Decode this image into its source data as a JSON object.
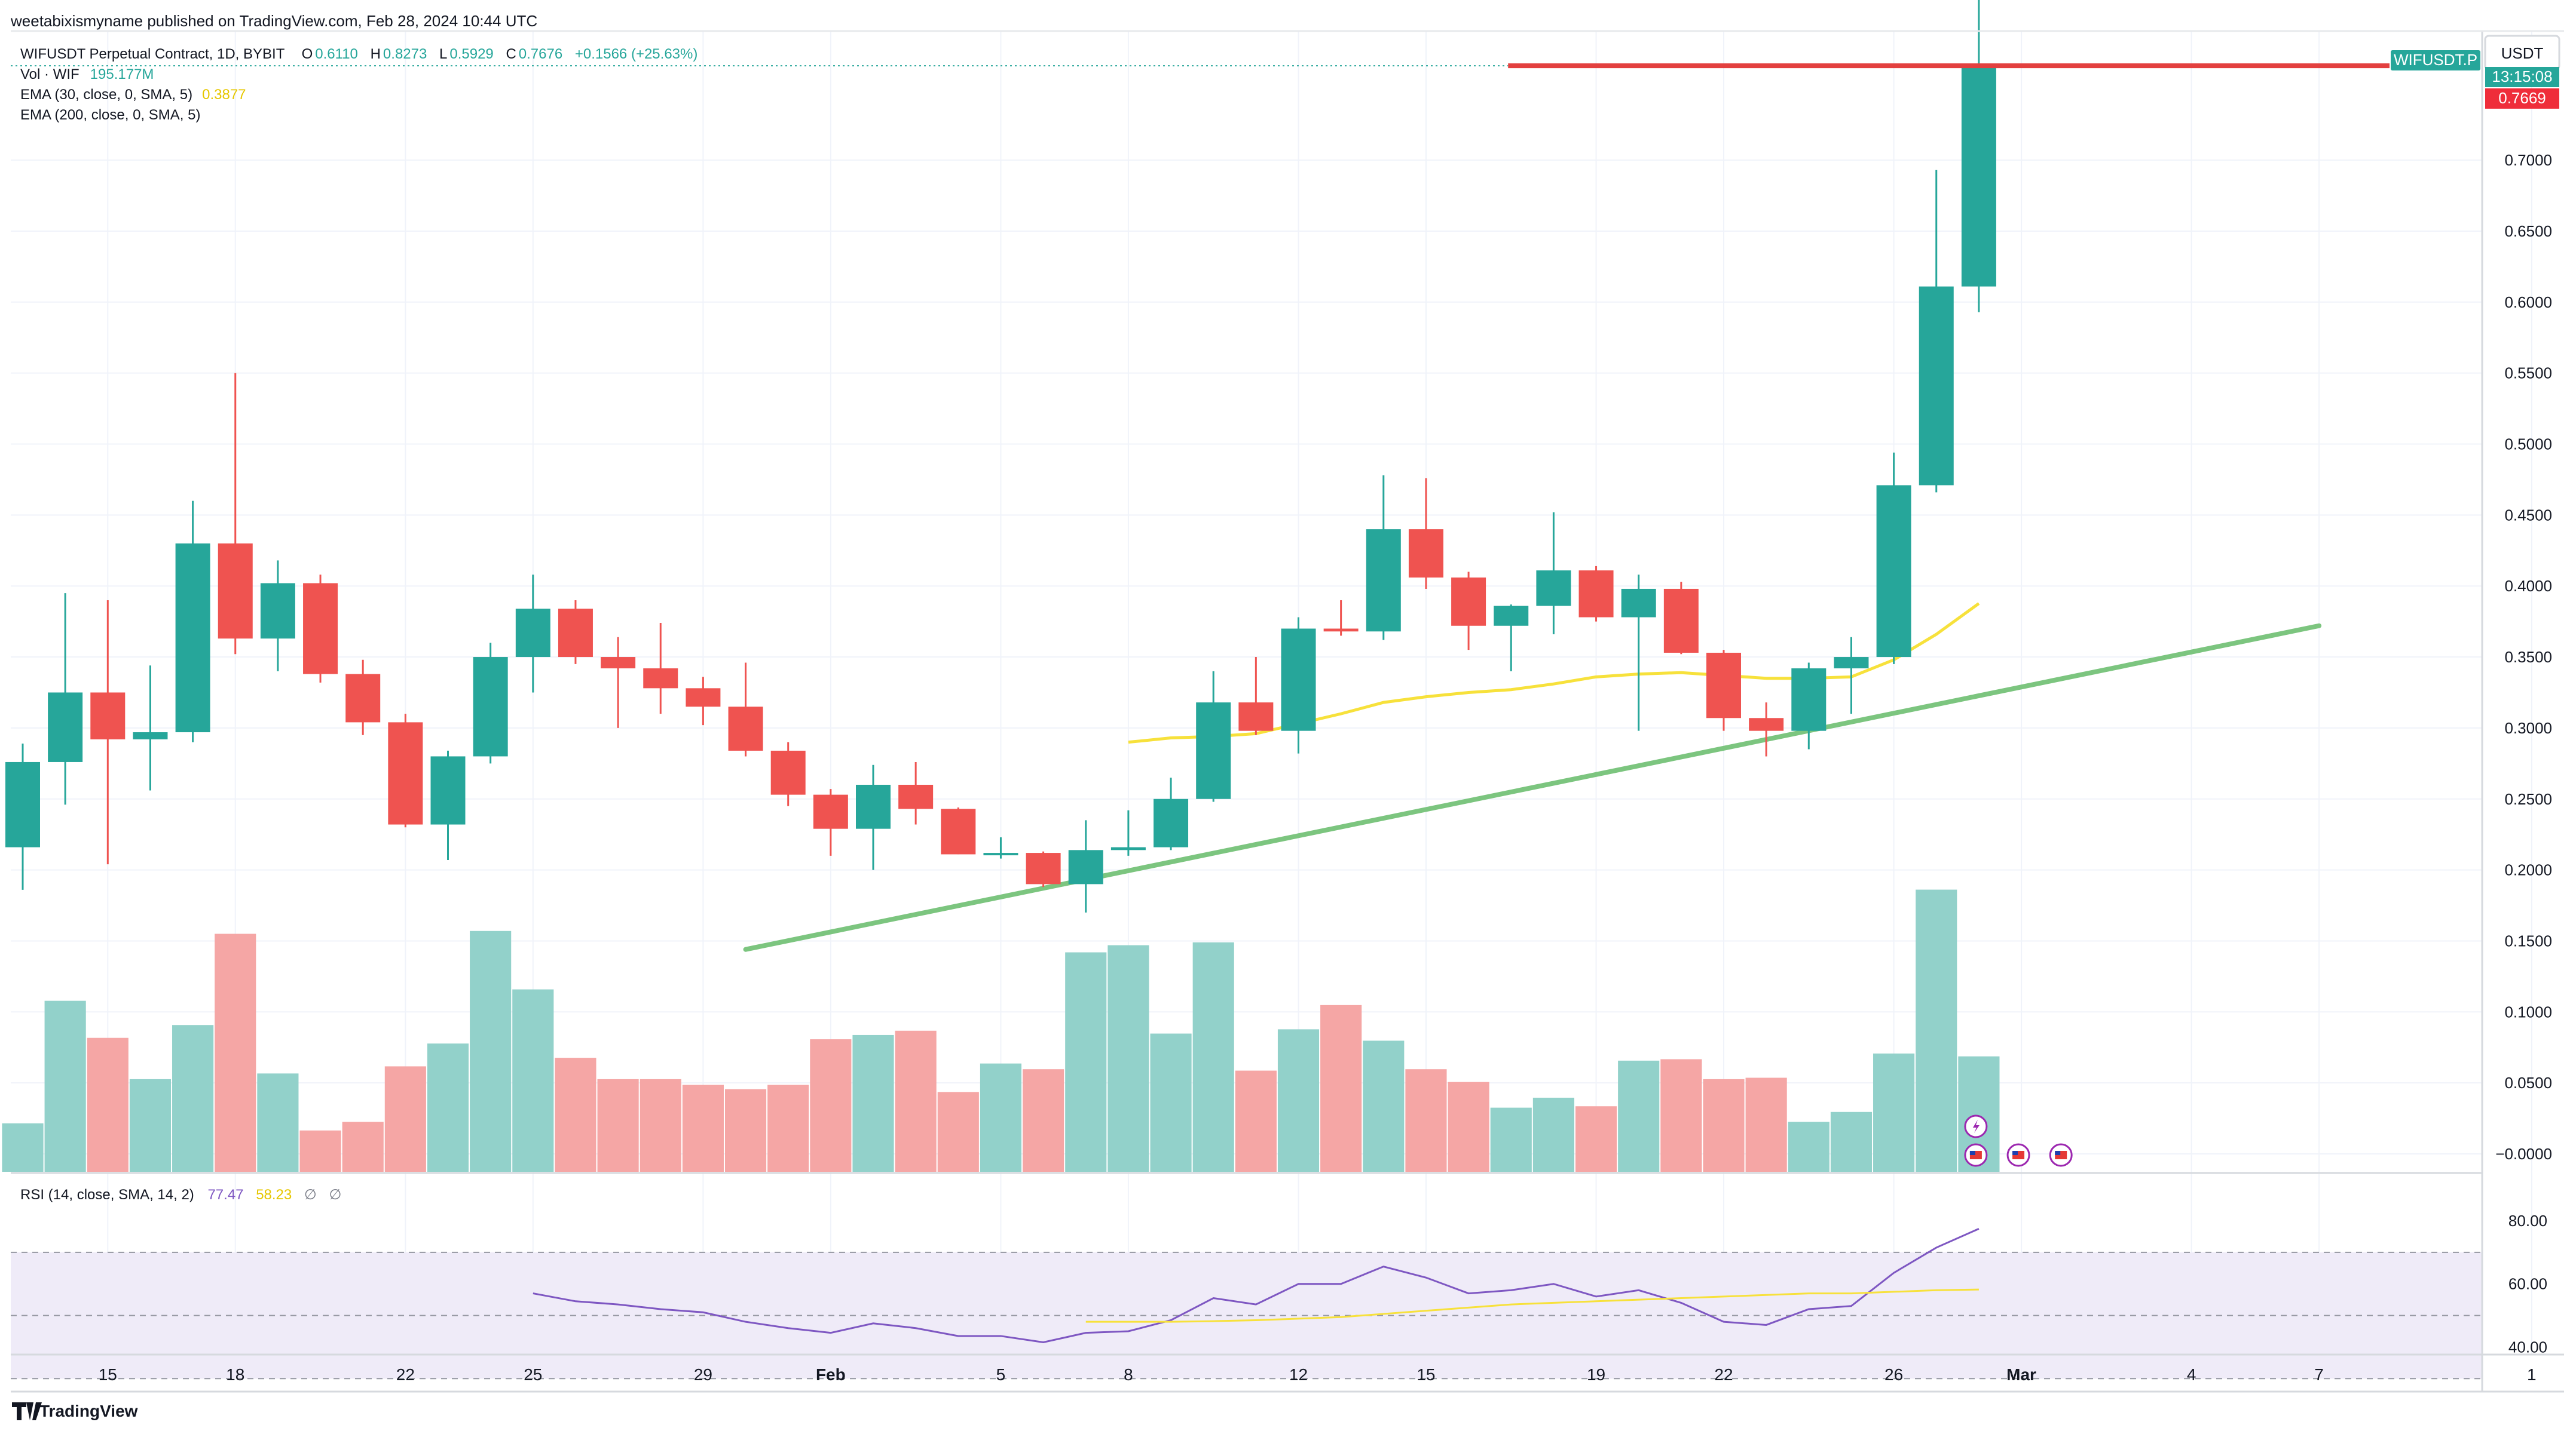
{
  "header": {
    "publisher": "weetabixismyname published on TradingView.com, Feb 28, 2024 10:44 UTC"
  },
  "legend": {
    "symbol": "WIFUSDT Perpetual Contract, 1D, BYBIT",
    "o_label": "O",
    "o": "0.6110",
    "h_label": "H",
    "h": "0.8273",
    "l_label": "L",
    "l": "0.5929",
    "c_label": "C",
    "c": "0.7676",
    "change": "+0.1566 (+25.63%)",
    "vol_label": "Vol · WIF",
    "vol_value": "195.177M",
    "ema30_label": "EMA (30, close, 0, SMA, 5)",
    "ema30_value": "0.3877",
    "ema200_label": "EMA (200, close, 0, SMA, 5)"
  },
  "rsi_legend": {
    "label": "RSI (14, close, SMA, 14, 2)",
    "rsi": "77.47",
    "ma": "58.23",
    "e1": "∅",
    "e2": "∅"
  },
  "price_axis": {
    "currency": "USDT",
    "ticker_tag": "WIFUSDT.P",
    "countdown": "13:15:08",
    "last_price": "0.7669",
    "ticks": [
      "0.7000",
      "0.6500",
      "0.6000",
      "0.5500",
      "0.5000",
      "0.4500",
      "0.4000",
      "0.3500",
      "0.3000",
      "0.2500",
      "0.2000",
      "0.1500",
      "0.1000",
      "0.0500",
      "−0.0000"
    ]
  },
  "rsi_axis": {
    "ticks": [
      "80.00",
      "60.00",
      "40.00"
    ]
  },
  "time_axis": {
    "ticks": [
      "15",
      "18",
      "22",
      "25",
      "29",
      "Feb",
      "5",
      "8",
      "12",
      "15",
      "19",
      "22",
      "26",
      "Mar",
      "4",
      "7",
      "1"
    ]
  },
  "footer": {
    "brand": "TradingView"
  },
  "colors": {
    "up": "#26a69a",
    "down": "#ef5350",
    "vol_up": "#92d1ca",
    "vol_down": "#f5a6a5",
    "ema30": "#f7e13b",
    "trendline": "#7cc57f",
    "hline": "#e3403f",
    "rsi": "#7e57c2",
    "rsi_ma": "#f7e13b",
    "rsi_band": "#efebf8"
  },
  "chart_data": {
    "type": "candlestick",
    "title": "WIFUSDT Perpetual Contract, 1D, BYBIT",
    "ylabel": "USDT",
    "ylim": [
      0,
      0.8273
    ],
    "x": [
      "Jan 13",
      "Jan 14",
      "Jan 15",
      "Jan 16",
      "Jan 17",
      "Jan 18",
      "Jan 19",
      "Jan 20",
      "Jan 21",
      "Jan 22",
      "Jan 23",
      "Jan 24",
      "Jan 25",
      "Jan 26",
      "Jan 27",
      "Jan 28",
      "Jan 29",
      "Jan 30",
      "Jan 31",
      "Feb 1",
      "Feb 2",
      "Feb 3",
      "Feb 4",
      "Feb 5",
      "Feb 6",
      "Feb 7",
      "Feb 8",
      "Feb 9",
      "Feb 10",
      "Feb 11",
      "Feb 12",
      "Feb 13",
      "Feb 14",
      "Feb 15",
      "Feb 16",
      "Feb 17",
      "Feb 18",
      "Feb 19",
      "Feb 20",
      "Feb 21",
      "Feb 22",
      "Feb 23",
      "Feb 24",
      "Feb 25",
      "Feb 26",
      "Feb 27",
      "Feb 28"
    ],
    "ohlc": [
      [
        0.216,
        0.289,
        0.186,
        0.276
      ],
      [
        0.276,
        0.395,
        0.246,
        0.325
      ],
      [
        0.325,
        0.39,
        0.204,
        0.292
      ],
      [
        0.292,
        0.344,
        0.256,
        0.297
      ],
      [
        0.297,
        0.46,
        0.29,
        0.43
      ],
      [
        0.43,
        0.55,
        0.352,
        0.363
      ],
      [
        0.363,
        0.418,
        0.34,
        0.402
      ],
      [
        0.402,
        0.408,
        0.332,
        0.338
      ],
      [
        0.338,
        0.348,
        0.295,
        0.304
      ],
      [
        0.304,
        0.31,
        0.23,
        0.232
      ],
      [
        0.232,
        0.284,
        0.207,
        0.28
      ],
      [
        0.28,
        0.36,
        0.275,
        0.35
      ],
      [
        0.35,
        0.408,
        0.325,
        0.384
      ],
      [
        0.384,
        0.39,
        0.345,
        0.35
      ],
      [
        0.35,
        0.364,
        0.3,
        0.342
      ],
      [
        0.342,
        0.374,
        0.31,
        0.328
      ],
      [
        0.328,
        0.336,
        0.302,
        0.315
      ],
      [
        0.315,
        0.346,
        0.28,
        0.284
      ],
      [
        0.284,
        0.29,
        0.245,
        0.253
      ],
      [
        0.253,
        0.257,
        0.21,
        0.229
      ],
      [
        0.229,
        0.274,
        0.2,
        0.26
      ],
      [
        0.26,
        0.276,
        0.232,
        0.243
      ],
      [
        0.243,
        0.244,
        0.211,
        0.211
      ],
      [
        0.211,
        0.223,
        0.208,
        0.212
      ],
      [
        0.212,
        0.213,
        0.188,
        0.19
      ],
      [
        0.19,
        0.235,
        0.17,
        0.214
      ],
      [
        0.214,
        0.242,
        0.21,
        0.216
      ],
      [
        0.216,
        0.265,
        0.214,
        0.25
      ],
      [
        0.25,
        0.34,
        0.248,
        0.318
      ],
      [
        0.318,
        0.35,
        0.295,
        0.298
      ],
      [
        0.298,
        0.378,
        0.282,
        0.37
      ],
      [
        0.37,
        0.39,
        0.365,
        0.368
      ],
      [
        0.368,
        0.478,
        0.362,
        0.44
      ],
      [
        0.44,
        0.476,
        0.398,
        0.406
      ],
      [
        0.406,
        0.41,
        0.355,
        0.372
      ],
      [
        0.372,
        0.387,
        0.34,
        0.386
      ],
      [
        0.386,
        0.452,
        0.366,
        0.411
      ],
      [
        0.411,
        0.414,
        0.375,
        0.378
      ],
      [
        0.378,
        0.408,
        0.298,
        0.398
      ],
      [
        0.398,
        0.403,
        0.352,
        0.353
      ],
      [
        0.353,
        0.355,
        0.298,
        0.307
      ],
      [
        0.307,
        0.318,
        0.28,
        0.298
      ],
      [
        0.298,
        0.346,
        0.285,
        0.342
      ],
      [
        0.342,
        0.364,
        0.31,
        0.35
      ],
      [
        0.35,
        0.494,
        0.345,
        0.471
      ],
      [
        0.471,
        0.693,
        0.466,
        0.611
      ],
      [
        0.611,
        0.8273,
        0.5929,
        0.7676
      ]
    ],
    "volume_ylim": [
      0,
      0.2
    ],
    "volume": [
      0.034,
      0.12,
      0.094,
      0.065,
      0.103,
      0.167,
      0.069,
      0.029,
      0.035,
      0.074,
      0.09,
      0.169,
      0.128,
      0.08,
      0.065,
      0.065,
      0.061,
      0.058,
      0.061,
      0.093,
      0.096,
      0.099,
      0.056,
      0.076,
      0.072,
      0.154,
      0.159,
      0.097,
      0.161,
      0.071,
      0.1,
      0.117,
      0.092,
      0.072,
      0.063,
      0.045,
      0.052,
      0.046,
      0.078,
      0.079,
      0.065,
      0.066,
      0.035,
      0.042,
      0.083,
      0.198,
      0.081
    ],
    "ema30": {
      "x_start": "Feb 8",
      "values": [
        0.29,
        0.293,
        0.294,
        0.296,
        0.303,
        0.31,
        0.318,
        0.322,
        0.325,
        0.327,
        0.331,
        0.336,
        0.338,
        0.339,
        0.337,
        0.335,
        0.335,
        0.336,
        0.348,
        0.366,
        0.3877
      ]
    },
    "rsi": {
      "ylim": [
        27,
        82
      ],
      "bands": [
        30,
        50,
        70
      ],
      "x_start": "Jan 25",
      "values": [
        57,
        54.5,
        53.5,
        52,
        51,
        48,
        46,
        44.5,
        47.5,
        46,
        43.5,
        43.5,
        41.5,
        44.5,
        45,
        48.5,
        55.5,
        53.5,
        60,
        60,
        65.5,
        62,
        57,
        58,
        60,
        56,
        58,
        54,
        48,
        47,
        52,
        53,
        63.5,
        71.5,
        77.47
      ],
      "ma_x_start": "Feb 7",
      "ma_values": [
        48,
        48,
        48,
        48.2,
        48.5,
        49,
        49.5,
        50.5,
        51.5,
        52.5,
        53.5,
        54,
        54.5,
        55,
        55.5,
        56,
        56.5,
        57,
        57,
        57.5,
        58,
        58.23
      ]
    },
    "horizontal_line": 0.7669,
    "trendline": {
      "from": [
        "Jan 30",
        0.144
      ],
      "to": [
        "Mar 7",
        0.372
      ]
    }
  }
}
